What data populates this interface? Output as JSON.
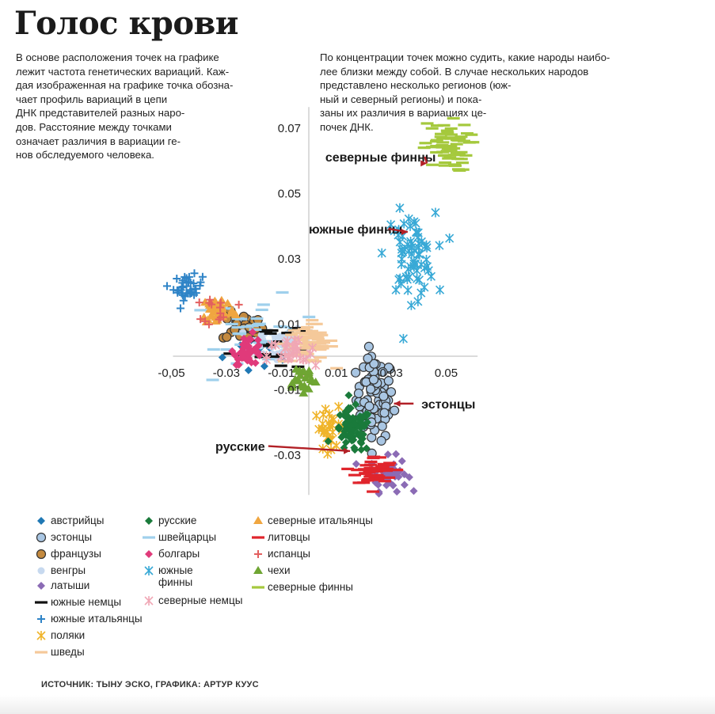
{
  "title": "Голос крови",
  "intro_left": [
    "В основе расположения точек на графике",
    "лежит частота генетических вариаций. Каж-",
    "дая изображенная на графике точка обозна-",
    "чает профиль вариаций в цепи",
    "ДНК представителей разных наро-",
    "дов. Расстояние между точками",
    "означает различия в вариации ге-",
    "нов обследуемого человека."
  ],
  "intro_right": [
    "По концентрации точек можно судить, какие народы наибо-",
    "лее близки между собой. В случае нескольких народов",
    "представлено несколько регионов (юж-",
    "ный и северный регионы) и пока-",
    "заны их различия в вариациях це-",
    "почек ДНК."
  ],
  "source": "ИСТОЧНИК: ТЫНУ ЭСКО, ГРАФИКА: АРТУР КУУС",
  "chart_data": {
    "type": "scatter",
    "xlim": [
      -0.05,
      0.06
    ],
    "ylim": [
      -0.04,
      0.075
    ],
    "x_ticks": [
      {
        "value": -0.05,
        "label": "-0,05"
      },
      {
        "value": -0.03,
        "label": "-0.03"
      },
      {
        "value": -0.01,
        "label": "-0.01"
      },
      {
        "value": 0.01,
        "label": "0.01"
      },
      {
        "value": 0.03,
        "label": "0.03"
      },
      {
        "value": 0.05,
        "label": "0.05"
      }
    ],
    "y_ticks": [
      {
        "value": 0.07,
        "label": "0.07"
      },
      {
        "value": 0.05,
        "label": "0.05"
      },
      {
        "value": 0.03,
        "label": "0.03"
      },
      {
        "value": 0.01,
        "label": "0.01"
      },
      {
        "value": -0.01,
        "label": "-0.01"
      },
      {
        "value": -0.03,
        "label": "-0.03"
      }
    ],
    "series": [
      {
        "name": "австрийцы",
        "marker": "diamond",
        "color": "#1f78b4",
        "cx": -0.016,
        "cy": 0.002,
        "sx": 0.01,
        "sy": 0.006,
        "n": 18
      },
      {
        "name": "эстонцы",
        "marker": "circle",
        "color": "#a9c6e3",
        "cx": 0.024,
        "cy": -0.013,
        "sx": 0.0045,
        "sy": 0.0085,
        "n": 80
      },
      {
        "name": "французы",
        "marker": "circle",
        "color": "#c48a3f",
        "cx": -0.024,
        "cy": 0.009,
        "sx": 0.005,
        "sy": 0.003,
        "n": 22
      },
      {
        "name": "венгры",
        "marker": "bigdot",
        "color": "#c7d9ef",
        "cx": -0.012,
        "cy": 0.004,
        "sx": 0.007,
        "sy": 0.004,
        "n": 40
      },
      {
        "name": "латыши",
        "marker": "diamond",
        "color": "#8b6bb5",
        "cx": 0.029,
        "cy": -0.036,
        "sx": 0.0045,
        "sy": 0.0035,
        "n": 45
      },
      {
        "name": "южные немцы",
        "marker": "dash",
        "color": "#111111",
        "cx": -0.015,
        "cy": 0.004,
        "sx": 0.009,
        "sy": 0.006,
        "n": 22
      },
      {
        "name": "южные итальянцы",
        "marker": "plus",
        "color": "#2f84c7",
        "cx": -0.044,
        "cy": 0.021,
        "sx": 0.0035,
        "sy": 0.0025,
        "n": 40
      },
      {
        "name": "поляки",
        "marker": "asterisk",
        "color": "#f0b42a",
        "cx": 0.008,
        "cy": -0.022,
        "sx": 0.004,
        "sy": 0.004,
        "n": 30
      },
      {
        "name": "шведы",
        "marker": "dash",
        "color": "#f5c99a",
        "cx": 0.0,
        "cy": 0.004,
        "sx": 0.006,
        "sy": 0.004,
        "n": 70
      },
      {
        "name": "русские",
        "marker": "diamond",
        "color": "#1a7a3b",
        "cx": 0.016,
        "cy": -0.023,
        "sx": 0.0045,
        "sy": 0.0045,
        "n": 75
      },
      {
        "name": "швейцарцы",
        "marker": "dash",
        "color": "#9fd0ec",
        "cx": -0.018,
        "cy": 0.008,
        "sx": 0.01,
        "sy": 0.008,
        "n": 30
      },
      {
        "name": "болгары",
        "marker": "diamond",
        "color": "#e03a7a",
        "cx": -0.022,
        "cy": 0.002,
        "sx": 0.0035,
        "sy": 0.003,
        "n": 40
      },
      {
        "name": "южные финны",
        "marker": "asterisk",
        "color": "#38a9d6",
        "cx": 0.037,
        "cy": 0.031,
        "sx": 0.006,
        "sy": 0.0085,
        "n": 70
      },
      {
        "name": "северные немцы",
        "marker": "asterisk",
        "color": "#f0a7b5",
        "cx": -0.006,
        "cy": 0.0,
        "sx": 0.006,
        "sy": 0.004,
        "n": 30
      },
      {
        "name": "северные итальянцы",
        "marker": "triangle",
        "color": "#f0a640",
        "cx": -0.033,
        "cy": 0.014,
        "sx": 0.004,
        "sy": 0.003,
        "n": 45
      },
      {
        "name": "литовцы",
        "marker": "dash",
        "color": "#e0252c",
        "cx": 0.024,
        "cy": -0.035,
        "sx": 0.0045,
        "sy": 0.003,
        "n": 50
      },
      {
        "name": "испанцы",
        "marker": "plus",
        "color": "#e35f5f",
        "cx": -0.032,
        "cy": 0.014,
        "sx": 0.004,
        "sy": 0.003,
        "n": 14
      },
      {
        "name": "чехи",
        "marker": "triangle",
        "color": "#6fa533",
        "cx": -0.003,
        "cy": -0.007,
        "sx": 0.004,
        "sy": 0.003,
        "n": 25
      },
      {
        "name": "северные финны",
        "marker": "dash",
        "color": "#a5c93d",
        "cx": 0.05,
        "cy": 0.064,
        "sx": 0.0055,
        "sy": 0.005,
        "n": 65
      }
    ],
    "annotations": [
      {
        "label": "северные финны",
        "text_x": 0.006,
        "text_y": 0.061,
        "arrow_to_x": 0.043,
        "arrow_to_y": 0.059
      },
      {
        "label": "южные финны",
        "text_x": 0.0,
        "text_y": 0.039,
        "arrow_to_x": 0.036,
        "arrow_to_y": 0.038
      },
      {
        "label": "эстонцы",
        "text_x": 0.041,
        "text_y": -0.0145,
        "arrow_from_x": 0.031,
        "arrow_from_y": -0.0145
      },
      {
        "label": "русские",
        "text_x": -0.034,
        "text_y": -0.0275,
        "arrow_to_x": 0.015,
        "arrow_to_y": -0.029
      }
    ]
  },
  "legend": {
    "columns": [
      [
        "австрийцы",
        "эстонцы",
        "французы",
        "венгры",
        "латыши",
        "южные немцы",
        "южные итальянцы",
        "поляки",
        "шведы"
      ],
      [
        "русские",
        "швейцарцы",
        "болгары",
        "южные финны",
        "северные немцы"
      ],
      [
        "северные итальянцы",
        "литовцы",
        "испанцы",
        "чехи",
        "северные финны"
      ]
    ]
  }
}
